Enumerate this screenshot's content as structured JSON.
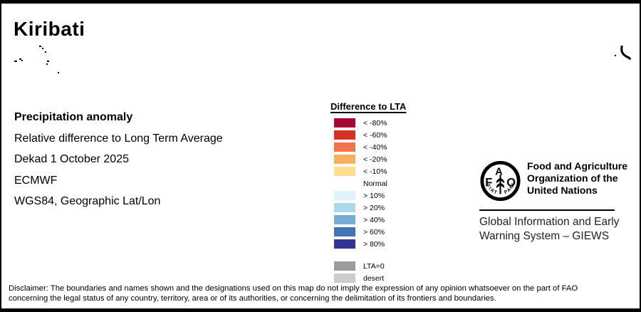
{
  "page_title": "Kiribati",
  "info": {
    "heading": "Precipitation anomaly",
    "line1": "Relative difference to Long Term Average",
    "line2": "Dekad 1 October 2025",
    "line3": "ECMWF",
    "line4": "WGS84, Geographic Lat/Lon"
  },
  "legend": {
    "title": "Difference to LTA",
    "rows": [
      {
        "label": "< -80%",
        "color": "#A70532"
      },
      {
        "label": "< -60%",
        "color": "#D93026"
      },
      {
        "label": "< -40%",
        "color": "#F4714C"
      },
      {
        "label": "< -20%",
        "color": "#FCAE61"
      },
      {
        "label": "< -10%",
        "color": "#FEDF90"
      },
      {
        "label": "Normal",
        "color": "#FFFFFF"
      },
      {
        "label": "> 10%",
        "color": "#E1F3F8"
      },
      {
        "label": "> 20%",
        "color": "#ABD9E9"
      },
      {
        "label": "> 40%",
        "color": "#74ADD1"
      },
      {
        "label": "> 60%",
        "color": "#4574B4"
      },
      {
        "label": "> 80%",
        "color": "#313695"
      },
      {
        "label": "LTA=0",
        "color": "#9B9B9B",
        "gap_before": true
      },
      {
        "label": "desert",
        "color": "#CCCCCC"
      }
    ]
  },
  "fao": {
    "logo_letters": {
      "f": "F",
      "a": "A",
      "o": "O",
      "motto_left": "FIAT",
      "motto_right": "PANIS"
    },
    "org_lines": [
      "Food and Agriculture",
      "Organization of the",
      "United Nations"
    ],
    "giews_lines": [
      "Global Information and Early",
      "Warning System – GIEWS"
    ]
  },
  "disclaimer": {
    "line1": "Disclaimer: The boundaries and names shown and the designations used on this map do not imply the expression of any opinion whatsoever on the part of FAO",
    "line2": "concerning the legal status of any country, territory, area or of its authorities, or concerning the delimitation of its frontiers and boundaries."
  },
  "map": {
    "dot_color": "#000000",
    "island_dots": [
      [
        53,
        59,
        3,
        2
      ],
      [
        57,
        62,
        2,
        2
      ],
      [
        61,
        67,
        2,
        2
      ],
      [
        18,
        80,
        4,
        2
      ],
      [
        25,
        77,
        3,
        2
      ],
      [
        28,
        79,
        2,
        2
      ],
      [
        64,
        80,
        3,
        2
      ],
      [
        63,
        84,
        2,
        2
      ],
      [
        79,
        96,
        2,
        2
      ],
      [
        861,
        72,
        2,
        2
      ]
    ]
  }
}
